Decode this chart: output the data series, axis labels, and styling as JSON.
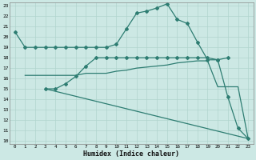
{
  "xlabel": "Humidex (Indice chaleur)",
  "bg_color": "#cce8e4",
  "line_color": "#2e7d72",
  "grid_color": "#b0d4ce",
  "xlim": [
    -0.5,
    23.5
  ],
  "ylim": [
    9.7,
    23.3
  ],
  "xticks": [
    0,
    1,
    2,
    3,
    4,
    5,
    6,
    7,
    8,
    9,
    10,
    11,
    12,
    13,
    14,
    15,
    16,
    17,
    18,
    19,
    20,
    21,
    22,
    23
  ],
  "yticks": [
    10,
    11,
    12,
    13,
    14,
    15,
    16,
    17,
    18,
    19,
    20,
    21,
    22,
    23
  ],
  "curve1_x": [
    0,
    1,
    2,
    3,
    4,
    5,
    6,
    7,
    8,
    9,
    10,
    11,
    12,
    13,
    14,
    15,
    16,
    17,
    18,
    19,
    20,
    21
  ],
  "curve1_y": [
    20.5,
    19.0,
    19.0,
    19.0,
    19.0,
    19.0,
    19.0,
    19.0,
    19.0,
    19.0,
    19.3,
    20.8,
    22.3,
    22.5,
    22.8,
    23.2,
    21.7,
    21.3,
    19.5,
    17.8,
    17.8,
    18.0
  ],
  "curve2_x": [
    1,
    2,
    3,
    4,
    5,
    6,
    7,
    8,
    9,
    10,
    11,
    12,
    13,
    14,
    15,
    16,
    17,
    18,
    19,
    20,
    21,
    22,
    23
  ],
  "curve2_y": [
    16.3,
    16.3,
    16.3,
    16.3,
    16.3,
    16.3,
    16.5,
    16.5,
    16.5,
    16.7,
    16.8,
    17.0,
    17.1,
    17.2,
    17.3,
    17.5,
    17.6,
    17.7,
    17.7,
    15.2,
    15.2,
    15.2,
    10.2
  ],
  "curve3_x": [
    3,
    4,
    5,
    6,
    7,
    8,
    9,
    10,
    11,
    12,
    13,
    14,
    15,
    16,
    17,
    18,
    19,
    20,
    21,
    22,
    23
  ],
  "curve3_y": [
    15.0,
    15.0,
    15.5,
    16.2,
    17.2,
    18.0,
    18.0,
    18.0,
    18.0,
    18.0,
    18.0,
    18.0,
    18.0,
    18.0,
    18.0,
    18.0,
    18.0,
    17.8,
    14.2,
    11.2,
    10.2
  ],
  "curve4_x": [
    3,
    23
  ],
  "curve4_y": [
    15.0,
    10.2
  ]
}
